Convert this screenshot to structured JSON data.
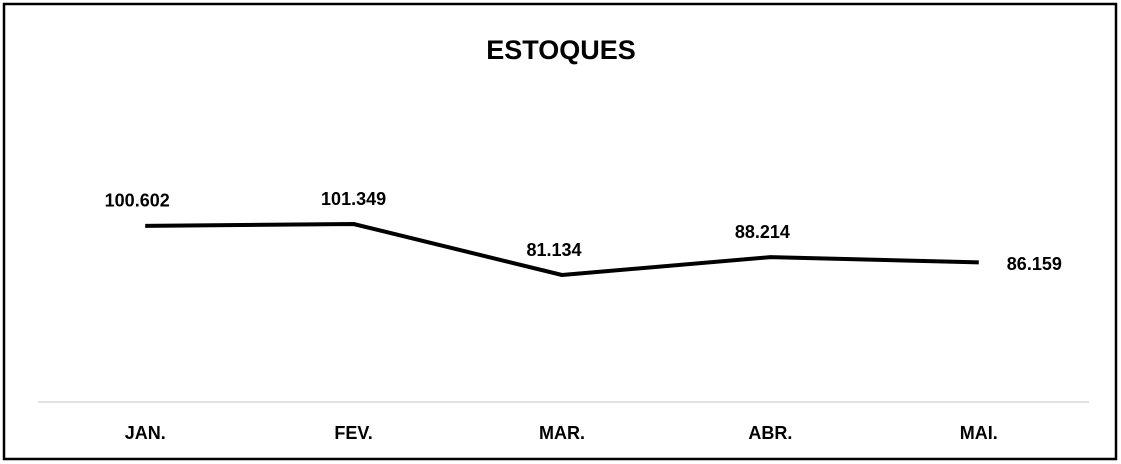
{
  "chart_data": {
    "type": "line",
    "title": "ESTOQUES",
    "categories": [
      "JAN.",
      "FEV.",
      "MAR.",
      "ABR.",
      "MAI."
    ],
    "series": [
      {
        "name": "ESTOQUES",
        "color": "#000000",
        "values": [
          100602,
          101349,
          81134,
          88214,
          86159
        ],
        "value_labels": [
          "100.602",
          "101.349",
          "81.134",
          "88.214",
          "86.159"
        ]
      }
    ]
  }
}
